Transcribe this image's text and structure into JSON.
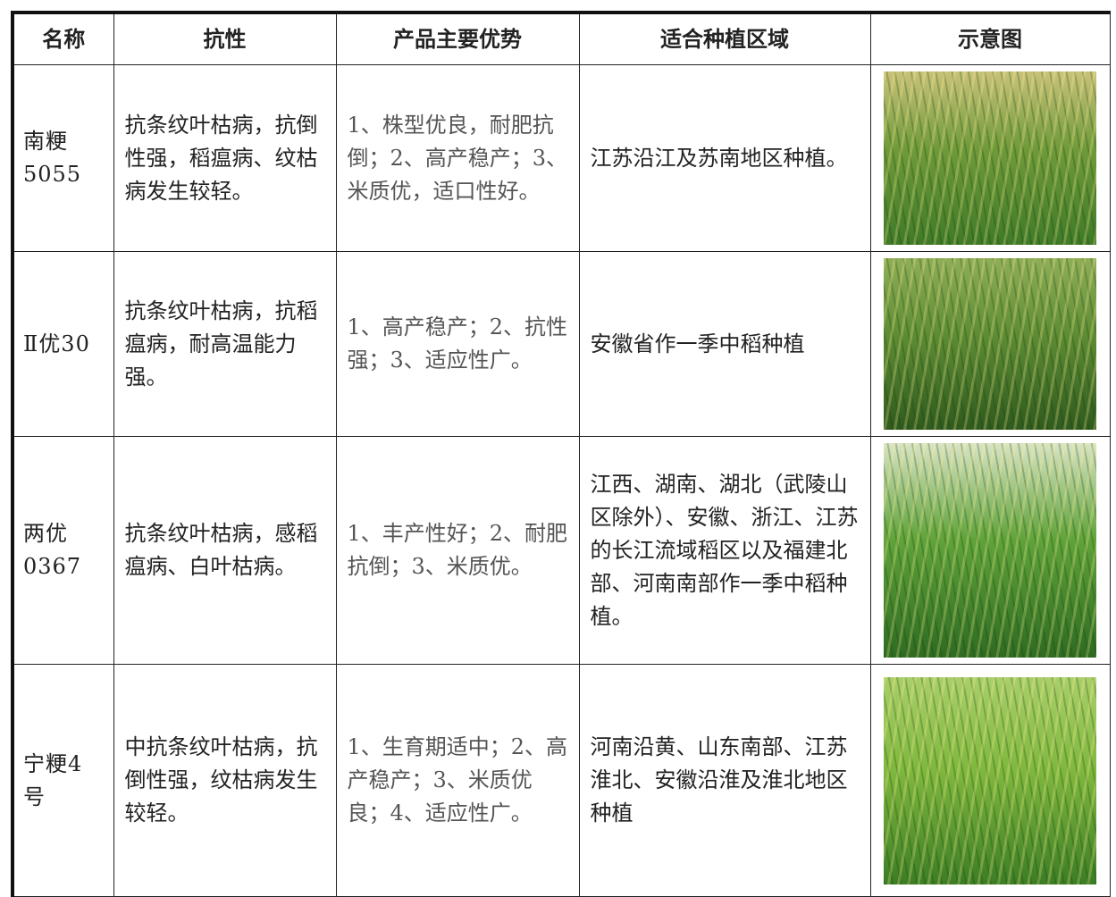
{
  "table": {
    "header": [
      "名称",
      "抗性",
      "产品主要优势",
      "适合种植区域",
      "示意图"
    ],
    "rows": [
      [
        "南粳5055",
        "抗条纹叶枯病，抗倒性强，稻瘟病、纹枯病发生较轻。",
        "1、株型优良，耐肥抗倒；2、高产稳产；3、米质优，适口性好。",
        "江苏沿江及苏南地区种植。"
      ],
      [
        "Ⅱ优30",
        "抗条纹叶枯病，抗稻瘟病，耐高温能力强。",
        "1、高产稳产；2、抗性强；3、适应性广。",
        "安徽省作一季中稻种植"
      ],
      [
        "两优0367",
        "抗条纹叶枯病，感稻瘟病、白叶枯病。",
        "1、丰产性好；2、耐肥抗倒；3、米质优。",
        "江西、湖南、湖北（武陵山区除外）、安徽、浙江、江苏的长江流域稻区以及福建北部、河南南部作一季中稻种植。"
      ],
      [
        "宁粳4号",
        "中抗条纹叶枯病，抗倒性强，纹枯病发生较轻。",
        "1、生育期适中；2、高产稳产；3、米质优良；4、适应性广。",
        "河南沿黄、山东南部、江苏淮北、安徽沿淮及淮北地区种植"
      ]
    ]
  }
}
